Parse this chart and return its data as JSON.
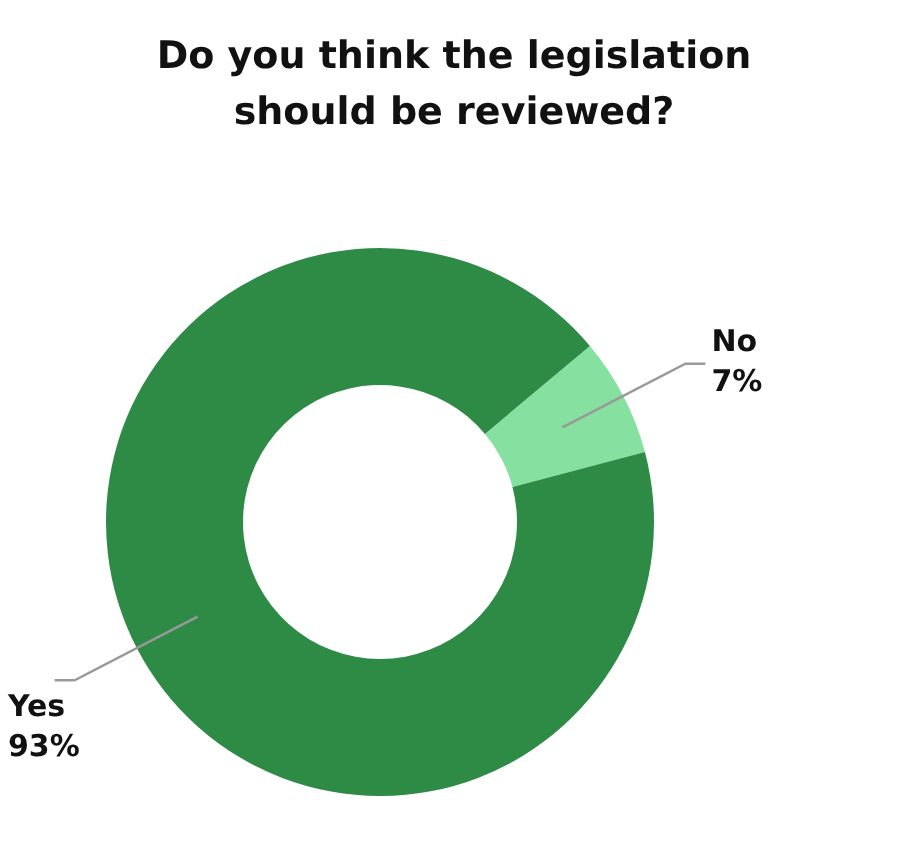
{
  "chart_data": {
    "type": "donut",
    "title": "Do you think the legislation should be reviewed?",
    "categories": [
      "No",
      "Yes"
    ],
    "values": [
      7,
      93
    ],
    "value_labels": [
      "7%",
      "93%"
    ],
    "colors": [
      "#86e0a0",
      "#2e8b46"
    ],
    "legend": false
  }
}
